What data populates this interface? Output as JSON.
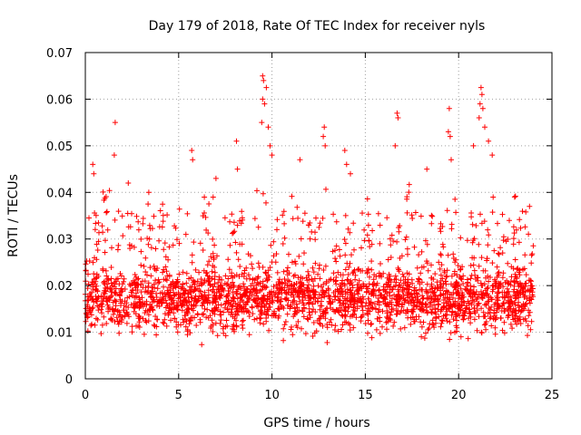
{
  "chart_data": {
    "type": "scatter",
    "title": "Day 179 of 2018, Rate Of TEC Index for receiver nyls",
    "xlabel": "GPS time / hours",
    "ylabel": "ROTI / TECUs",
    "xlim": [
      0,
      25
    ],
    "ylim": [
      0,
      0.07
    ],
    "xticks": [
      0,
      5,
      10,
      15,
      20,
      25
    ],
    "xtick_labels": [
      "0",
      "5",
      "10",
      "15",
      "20",
      "25"
    ],
    "yticks": [
      0,
      0.01,
      0.02,
      0.03,
      0.04,
      0.05,
      0.06,
      0.07
    ],
    "ytick_labels": [
      "0",
      "0.01",
      "0.02",
      "0.03",
      "0.04",
      "0.05",
      "0.06",
      "0.07"
    ],
    "grid": true,
    "marker": "+",
    "color": "#ff0000",
    "series": [
      {
        "name": "ROTI",
        "x_range": [
          0,
          24
        ],
        "typical_band": [
          0.006,
          0.028
        ],
        "outliers": [
          {
            "x": 0.4,
            "y": 0.046
          },
          {
            "x": 0.45,
            "y": 0.044
          },
          {
            "x": 1.6,
            "y": 0.055
          },
          {
            "x": 1.55,
            "y": 0.048
          },
          {
            "x": 2.3,
            "y": 0.042
          },
          {
            "x": 3.4,
            "y": 0.04
          },
          {
            "x": 5.7,
            "y": 0.049
          },
          {
            "x": 5.75,
            "y": 0.047
          },
          {
            "x": 7.0,
            "y": 0.043
          },
          {
            "x": 8.1,
            "y": 0.051
          },
          {
            "x": 8.15,
            "y": 0.045
          },
          {
            "x": 9.5,
            "y": 0.065
          },
          {
            "x": 9.55,
            "y": 0.064
          },
          {
            "x": 9.5,
            "y": 0.06
          },
          {
            "x": 9.7,
            "y": 0.0625
          },
          {
            "x": 9.6,
            "y": 0.059
          },
          {
            "x": 9.45,
            "y": 0.055
          },
          {
            "x": 9.8,
            "y": 0.054
          },
          {
            "x": 9.9,
            "y": 0.05
          },
          {
            "x": 10.0,
            "y": 0.048
          },
          {
            "x": 11.5,
            "y": 0.047
          },
          {
            "x": 12.8,
            "y": 0.054
          },
          {
            "x": 12.75,
            "y": 0.052
          },
          {
            "x": 12.85,
            "y": 0.05
          },
          {
            "x": 13.9,
            "y": 0.049
          },
          {
            "x": 14.0,
            "y": 0.046
          },
          {
            "x": 14.2,
            "y": 0.044
          },
          {
            "x": 16.7,
            "y": 0.057
          },
          {
            "x": 16.75,
            "y": 0.056
          },
          {
            "x": 16.6,
            "y": 0.05
          },
          {
            "x": 18.3,
            "y": 0.045
          },
          {
            "x": 19.5,
            "y": 0.058
          },
          {
            "x": 19.45,
            "y": 0.053
          },
          {
            "x": 19.55,
            "y": 0.052
          },
          {
            "x": 19.6,
            "y": 0.047
          },
          {
            "x": 20.8,
            "y": 0.05
          },
          {
            "x": 21.2,
            "y": 0.0625
          },
          {
            "x": 21.25,
            "y": 0.061
          },
          {
            "x": 21.15,
            "y": 0.059
          },
          {
            "x": 21.3,
            "y": 0.058
          },
          {
            "x": 21.1,
            "y": 0.056
          },
          {
            "x": 21.4,
            "y": 0.054
          },
          {
            "x": 21.6,
            "y": 0.051
          },
          {
            "x": 21.8,
            "y": 0.048
          },
          {
            "x": 23.0,
            "y": 0.039
          },
          {
            "x": 23.8,
            "y": 0.037
          }
        ]
      }
    ]
  }
}
